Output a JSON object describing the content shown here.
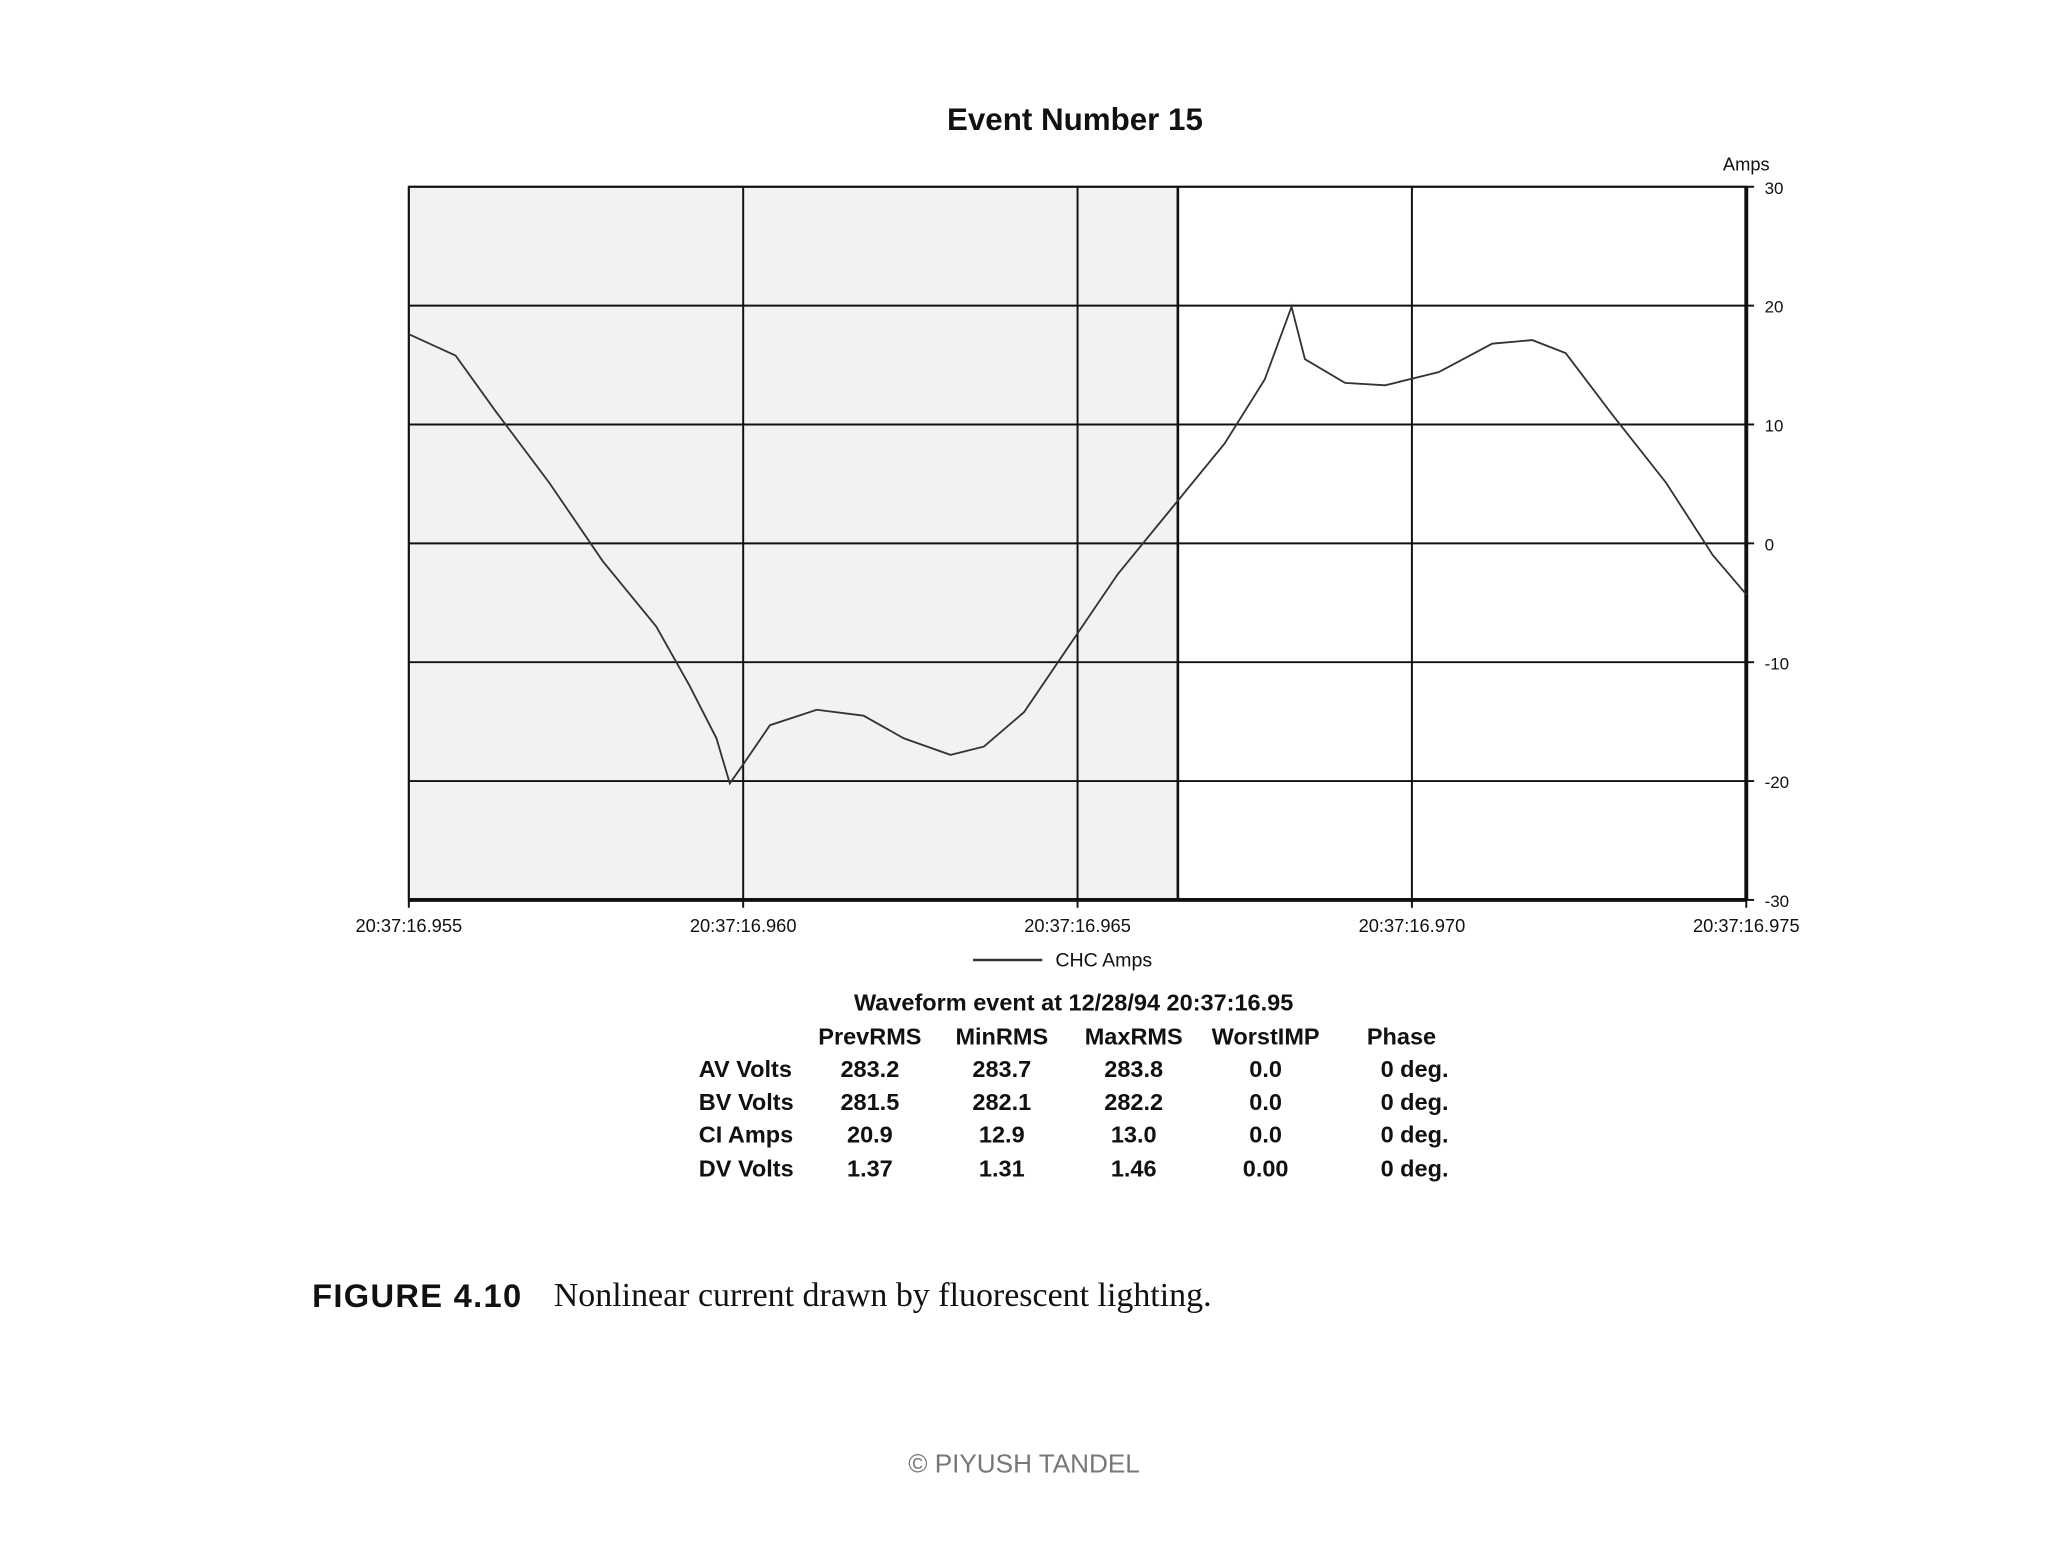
{
  "chart_data": {
    "type": "line",
    "title": "Event Number 15",
    "y_label": "Amps",
    "x": [
      16.955,
      16.9557,
      16.9563,
      16.9571,
      16.9579,
      16.9587,
      16.9592,
      16.9596,
      16.9598,
      16.96,
      16.9604,
      16.9611,
      16.9618,
      16.9624,
      16.9631,
      16.9636,
      16.9642,
      16.9649,
      16.9656,
      16.9664,
      16.9672,
      16.9678,
      16.9682,
      16.9684,
      16.969,
      16.9696,
      16.9704,
      16.9712,
      16.9718,
      16.9723,
      16.973,
      16.9738,
      16.9745,
      16.975
    ],
    "series": [
      {
        "name": "CHC Amps",
        "color": "#333333",
        "values": [
          17.6,
          15.8,
          11.1,
          5.1,
          -1.5,
          -7.0,
          -12.0,
          -16.4,
          -20.2,
          -18.6,
          -15.3,
          -14.0,
          -14.5,
          -16.4,
          -17.8,
          -17.1,
          -14.2,
          -8.4,
          -2.6,
          2.9,
          8.4,
          13.8,
          19.9,
          15.5,
          13.5,
          13.3,
          14.4,
          16.8,
          17.1,
          16.0,
          10.8,
          5.1,
          -1.0,
          -4.3
        ]
      }
    ],
    "xlim": [
      16.955,
      16.975
    ],
    "xticks": [
      {
        "value": 16.955,
        "label": "20:37:16.955"
      },
      {
        "value": 16.96,
        "label": "20:37:16.960"
      },
      {
        "value": 16.965,
        "label": "20:37:16.965"
      },
      {
        "value": 16.97,
        "label": "20:37:16.970"
      },
      {
        "value": 16.975,
        "label": "20:37:16.975"
      }
    ],
    "ylim": [
      -30,
      30
    ],
    "yticks": [
      -30,
      -20,
      -10,
      0,
      10,
      20,
      30
    ],
    "grid": true,
    "shade_xlim": [
      16.955,
      16.9665
    ],
    "shade_color": "#f2f2f2",
    "legend": "bottom"
  },
  "table": {
    "title": "Waveform event at 12/28/94 20:37:16.95",
    "header": [
      "PrevRMS",
      "MinRMS",
      "MaxRMS",
      "WorstIMP",
      "Phase"
    ],
    "rows": [
      [
        "AV Volts",
        "283.2",
        "283.7",
        "283.8",
        "0.0",
        "0 deg."
      ],
      [
        "BV Volts",
        "281.5",
        "282.1",
        "282.2",
        "0.0",
        "0 deg."
      ],
      [
        "CI Amps",
        "20.9",
        "12.9",
        "13.0",
        "0.0",
        "0 deg."
      ],
      [
        "DV Volts",
        "1.37",
        "1.31",
        "1.46",
        "0.00",
        "0 deg."
      ]
    ]
  },
  "caption": {
    "label": "FIGURE 4.10",
    "text": "Nonlinear current drawn by fluorescent lighting."
  },
  "footer": "© PIYUSH TANDEL"
}
